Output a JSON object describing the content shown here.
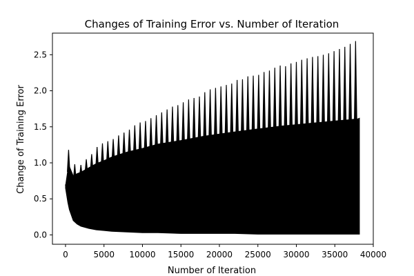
{
  "chart_data": {
    "type": "line",
    "title": "Changes of Training Error vs. Number of Iteration",
    "xlabel": "Number of Iteration",
    "ylabel": "Change of Training Error",
    "xlim": [
      -1700,
      40000
    ],
    "ylim": [
      -0.13,
      2.8
    ],
    "xticks": [
      0,
      5000,
      10000,
      15000,
      20000,
      25000,
      30000,
      35000,
      40000
    ],
    "yticks": [
      0.0,
      0.5,
      1.0,
      1.5,
      2.0,
      2.5
    ],
    "grid": false,
    "legend": "none",
    "line_color": "#000000",
    "series": [
      {
        "x": [
          0,
          300,
          500,
          1000,
          1500,
          2000,
          3000,
          4000,
          5000,
          6000,
          8000,
          10000,
          12000,
          15000,
          18000,
          20000,
          22000,
          25000,
          28000,
          30000,
          32000,
          35000,
          37000,
          38000,
          38200
        ],
        "upper": [
          0.68,
          0.9,
          0.95,
          0.82,
          0.85,
          0.87,
          0.93,
          0.99,
          1.03,
          1.08,
          1.15,
          1.2,
          1.26,
          1.31,
          1.37,
          1.4,
          1.43,
          1.47,
          1.51,
          1.53,
          1.55,
          1.58,
          1.6,
          1.61,
          1.62
        ],
        "lower": [
          0.65,
          0.45,
          0.35,
          0.2,
          0.15,
          0.12,
          0.09,
          0.07,
          0.06,
          0.05,
          0.04,
          0.03,
          0.03,
          0.02,
          0.02,
          0.02,
          0.02,
          0.01,
          0.01,
          0.01,
          0.01,
          0.01,
          0.01,
          0.01,
          0.01
        ]
      },
      {
        "name": "",
        "type": "spikes",
        "x": [
          400,
          1200,
          2000,
          2700,
          3400,
          4100,
          4800,
          5500,
          6200,
          6900,
          7600,
          8300,
          9000,
          9700,
          10400,
          11100,
          11800,
          12500,
          13200,
          13900,
          14600,
          15300,
          16000,
          16700,
          17400,
          18100,
          18800,
          19500,
          20200,
          20900,
          21600,
          22300,
          23000,
          23700,
          24400,
          25100,
          25800,
          26500,
          27200,
          27900,
          28600,
          29300,
          30000,
          30700,
          31400,
          32100,
          32800,
          33500,
          34200,
          34900,
          35600,
          36300,
          37000,
          37700
        ],
        "peaks": [
          1.18,
          0.98,
          0.97,
          1.05,
          1.12,
          1.22,
          1.27,
          1.3,
          1.33,
          1.38,
          1.42,
          1.46,
          1.52,
          1.56,
          1.58,
          1.62,
          1.66,
          1.7,
          1.74,
          1.78,
          1.8,
          1.84,
          1.88,
          1.9,
          1.92,
          1.98,
          2.02,
          2.04,
          2.06,
          2.08,
          2.1,
          2.15,
          2.16,
          2.2,
          2.21,
          2.22,
          2.26,
          2.28,
          2.32,
          2.35,
          2.34,
          2.38,
          2.4,
          2.43,
          2.45,
          2.47,
          2.48,
          2.5,
          2.52,
          2.55,
          2.58,
          2.61,
          2.65,
          2.69
        ]
      }
    ]
  }
}
